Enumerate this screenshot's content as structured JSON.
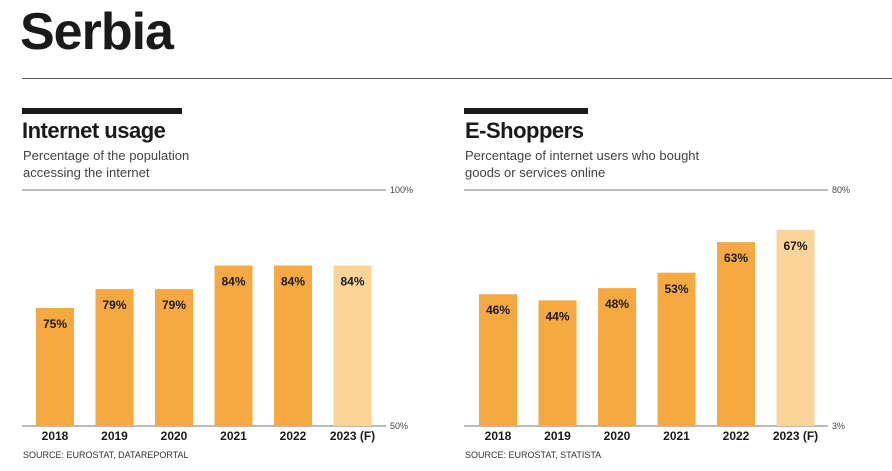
{
  "page_title": "Serbia",
  "colors": {
    "bar": "#f7a941",
    "forecast_bar": "#fcd49a",
    "text": "#1a1a1a",
    "axis": "#777777"
  },
  "chart_data": [
    {
      "type": "bar",
      "title": "Internet usage",
      "subtitle": "Percentage of the population accessing the internet",
      "source": "SOURCE: EUROSTAT, DATAREPORTAL",
      "categories": [
        "2018",
        "2019",
        "2020",
        "2021",
        "2022",
        "2023 (F)"
      ],
      "values": [
        75,
        79,
        79,
        84,
        84,
        84
      ],
      "value_labels": [
        "75%",
        "79%",
        "79%",
        "84%",
        "84%",
        "84%"
      ],
      "forecast": [
        false,
        false,
        false,
        false,
        false,
        true
      ],
      "ylim": [
        50,
        100
      ],
      "ymin_label": "50%",
      "ymax_label": "100%",
      "grid": false
    },
    {
      "type": "bar",
      "title": "E-Shoppers",
      "subtitle": "Percentage of internet users who bought goods or services online",
      "source": "SOURCE: EUROSTAT, STATISTA",
      "categories": [
        "2018",
        "2019",
        "2020",
        "2021",
        "2022",
        "2023 (F)"
      ],
      "values": [
        46,
        44,
        48,
        53,
        63,
        67
      ],
      "value_labels": [
        "46%",
        "44%",
        "48%",
        "53%",
        "63%",
        "67%"
      ],
      "forecast": [
        false,
        false,
        false,
        false,
        false,
        true
      ],
      "ylim": [
        3,
        80
      ],
      "ymin_label": "3%",
      "ymax_label": "80%",
      "grid": false
    }
  ]
}
